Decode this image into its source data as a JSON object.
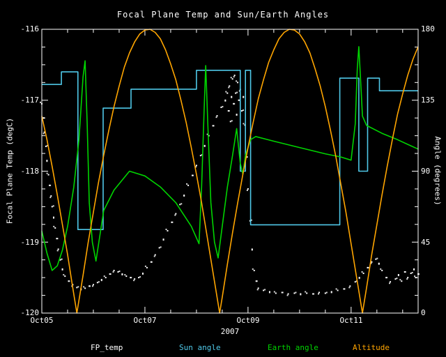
{
  "window": {
    "background": "#000000",
    "foreground": "#ffffff"
  },
  "chart_data": {
    "type": "line",
    "title": "Focal Plane Temp and Sun/Earth Angles",
    "xlabel": "2007",
    "ylabel_left": "Focal Plane Temp (degC)",
    "ylabel_right": "Angle (degrees)",
    "x_range_days": [
      0,
      7.3
    ],
    "x_tick_days": [
      0,
      2,
      4,
      6
    ],
    "x_tick_labels": [
      "Oct05",
      "Oct07",
      "Oct09",
      "Oct11"
    ],
    "y_left_range": [
      -120,
      -116
    ],
    "y_left_ticks": [
      "-116",
      "-117",
      "-118",
      "-119",
      "-120"
    ],
    "y_right_range": [
      0,
      180
    ],
    "y_right_ticks": [
      "180",
      "135",
      "90",
      "45",
      "0"
    ],
    "grid": false,
    "legend_position": "bottom",
    "legend": [
      {
        "label": "FP_temp",
        "color": "#ffffff"
      },
      {
        "label": "Sun angle",
        "color": "#4fc8e8"
      },
      {
        "label": "Earth angle",
        "color": "#00d400"
      },
      {
        "label": "Altitude",
        "color": "#ffa500"
      }
    ],
    "series": [
      {
        "name": "FP_temp",
        "type": "scatter",
        "axis": "left",
        "color": "#ffffff",
        "points": [
          [
            0.0,
            -117.05
          ],
          [
            0.03,
            -117.25
          ],
          [
            0.05,
            -117.45
          ],
          [
            0.08,
            -117.65
          ],
          [
            0.1,
            -117.85
          ],
          [
            0.13,
            -118.05
          ],
          [
            0.15,
            -118.2
          ],
          [
            0.18,
            -118.35
          ],
          [
            0.2,
            -118.5
          ],
          [
            0.23,
            -118.65
          ],
          [
            0.26,
            -118.8
          ],
          [
            0.29,
            -118.95
          ],
          [
            0.32,
            -119.1
          ],
          [
            0.36,
            -119.25
          ],
          [
            0.4,
            -119.38
          ],
          [
            0.45,
            -119.48
          ],
          [
            0.52,
            -119.55
          ],
          [
            0.6,
            -119.6
          ],
          [
            0.68,
            -119.64
          ],
          [
            0.76,
            -119.66
          ],
          [
            0.84,
            -119.65
          ],
          [
            0.92,
            -119.62
          ],
          [
            1.0,
            -119.6
          ],
          [
            1.08,
            -119.57
          ],
          [
            1.16,
            -119.53
          ],
          [
            1.24,
            -119.5
          ],
          [
            1.32,
            -119.45
          ],
          [
            1.4,
            -119.4
          ],
          [
            1.48,
            -119.42
          ],
          [
            1.56,
            -119.45
          ],
          [
            1.64,
            -119.48
          ],
          [
            1.72,
            -119.5
          ],
          [
            1.8,
            -119.52
          ],
          [
            1.88,
            -119.5
          ],
          [
            1.96,
            -119.44
          ],
          [
            2.04,
            -119.36
          ],
          [
            2.12,
            -119.28
          ],
          [
            2.2,
            -119.18
          ],
          [
            2.28,
            -119.08
          ],
          [
            2.36,
            -118.96
          ],
          [
            2.44,
            -118.84
          ],
          [
            2.52,
            -118.72
          ],
          [
            2.6,
            -118.6
          ],
          [
            2.68,
            -118.47
          ],
          [
            2.76,
            -118.34
          ],
          [
            2.84,
            -118.2
          ],
          [
            2.92,
            -118.06
          ],
          [
            3.0,
            -117.92
          ],
          [
            3.08,
            -117.78
          ],
          [
            3.16,
            -117.64
          ],
          [
            3.24,
            -117.5
          ],
          [
            3.32,
            -117.36
          ],
          [
            3.4,
            -117.22
          ],
          [
            3.48,
            -117.1
          ],
          [
            3.56,
            -117.0
          ],
          [
            3.6,
            -116.9
          ],
          [
            3.62,
            -117.15
          ],
          [
            3.64,
            -116.8
          ],
          [
            3.66,
            -117.3
          ],
          [
            3.68,
            -116.95
          ],
          [
            3.7,
            -116.7
          ],
          [
            3.72,
            -117.05
          ],
          [
            3.74,
            -116.65
          ],
          [
            3.76,
            -116.9
          ],
          [
            3.78,
            -117.2
          ],
          [
            3.8,
            -116.75
          ],
          [
            3.82,
            -117.0
          ],
          [
            3.85,
            -116.85
          ],
          [
            3.88,
            -117.15
          ],
          [
            3.91,
            -116.95
          ],
          [
            3.94,
            -117.35
          ],
          [
            3.97,
            -117.8
          ],
          [
            4.0,
            -118.25
          ],
          [
            4.04,
            -118.7
          ],
          [
            4.08,
            -119.1
          ],
          [
            4.12,
            -119.4
          ],
          [
            4.16,
            -119.55
          ],
          [
            4.2,
            -119.65
          ],
          [
            4.3,
            -119.68
          ],
          [
            4.42,
            -119.7
          ],
          [
            4.54,
            -119.72
          ],
          [
            4.66,
            -119.71
          ],
          [
            4.78,
            -119.73
          ],
          [
            4.9,
            -119.72
          ],
          [
            5.02,
            -119.73
          ],
          [
            5.14,
            -119.72
          ],
          [
            5.26,
            -119.73
          ],
          [
            5.38,
            -119.71
          ],
          [
            5.5,
            -119.72
          ],
          [
            5.62,
            -119.7
          ],
          [
            5.74,
            -119.68
          ],
          [
            5.86,
            -119.66
          ],
          [
            5.98,
            -119.62
          ],
          [
            6.08,
            -119.56
          ],
          [
            6.16,
            -119.5
          ],
          [
            6.24,
            -119.44
          ],
          [
            6.32,
            -119.36
          ],
          [
            6.4,
            -119.28
          ],
          [
            6.48,
            -119.24
          ],
          [
            6.54,
            -119.3
          ],
          [
            6.6,
            -119.4
          ],
          [
            6.68,
            -119.5
          ],
          [
            6.76,
            -119.56
          ],
          [
            6.86,
            -119.52
          ],
          [
            6.92,
            -119.46
          ],
          [
            6.98,
            -119.55
          ],
          [
            7.04,
            -119.42
          ],
          [
            7.1,
            -119.5
          ],
          [
            7.16,
            -119.44
          ],
          [
            7.22,
            -119.38
          ],
          [
            7.26,
            -119.5
          ],
          [
            7.3,
            -119.45
          ]
        ]
      },
      {
        "name": "Sun angle",
        "type": "step",
        "axis": "right",
        "color": "#4fc8e8",
        "points": [
          [
            0.0,
            145
          ],
          [
            0.38,
            153
          ],
          [
            0.7,
            53
          ],
          [
            1.19,
            130
          ],
          [
            1.73,
            142
          ],
          [
            3.0,
            154
          ],
          [
            3.85,
            90
          ],
          [
            3.95,
            154
          ],
          [
            4.05,
            56
          ],
          [
            5.78,
            149
          ],
          [
            6.15,
            90
          ],
          [
            6.32,
            149
          ],
          [
            6.55,
            141
          ],
          [
            7.3,
            141
          ]
        ]
      },
      {
        "name": "Earth angle",
        "type": "line",
        "axis": "right",
        "color": "#00d400",
        "points": [
          [
            0.0,
            52
          ],
          [
            0.1,
            38
          ],
          [
            0.2,
            27
          ],
          [
            0.3,
            30
          ],
          [
            0.4,
            40
          ],
          [
            0.5,
            55
          ],
          [
            0.62,
            80
          ],
          [
            0.72,
            110
          ],
          [
            0.8,
            150
          ],
          [
            0.84,
            160
          ],
          [
            0.88,
            120
          ],
          [
            0.92,
            70
          ],
          [
            0.98,
            45
          ],
          [
            1.05,
            33
          ],
          [
            1.2,
            65
          ],
          [
            1.4,
            78
          ],
          [
            1.7,
            90
          ],
          [
            2.0,
            87
          ],
          [
            2.3,
            80
          ],
          [
            2.6,
            70
          ],
          [
            2.9,
            55
          ],
          [
            3.05,
            44
          ],
          [
            3.1,
            80
          ],
          [
            3.15,
            130
          ],
          [
            3.18,
            157
          ],
          [
            3.22,
            120
          ],
          [
            3.28,
            70
          ],
          [
            3.35,
            45
          ],
          [
            3.42,
            35
          ],
          [
            3.5,
            55
          ],
          [
            3.6,
            80
          ],
          [
            3.7,
            100
          ],
          [
            3.78,
            117
          ],
          [
            3.85,
            95
          ],
          [
            3.9,
            88
          ],
          [
            3.95,
            100
          ],
          [
            4.05,
            110
          ],
          [
            4.15,
            112
          ],
          [
            4.5,
            109
          ],
          [
            5.0,
            105
          ],
          [
            5.5,
            101
          ],
          [
            5.8,
            99
          ],
          [
            6.0,
            97
          ],
          [
            6.08,
            120
          ],
          [
            6.12,
            155
          ],
          [
            6.15,
            169
          ],
          [
            6.18,
            150
          ],
          [
            6.22,
            125
          ],
          [
            6.3,
            119
          ],
          [
            6.6,
            114
          ],
          [
            6.9,
            110
          ],
          [
            7.1,
            107
          ],
          [
            7.3,
            104
          ]
        ]
      },
      {
        "name": "Altitude",
        "type": "line",
        "axis": "right",
        "color": "#ffa500",
        "points": [
          [
            0.0,
            125
          ],
          [
            0.1,
            110
          ],
          [
            0.2,
            93
          ],
          [
            0.3,
            75
          ],
          [
            0.4,
            56
          ],
          [
            0.5,
            37
          ],
          [
            0.6,
            16
          ],
          [
            0.68,
            0
          ],
          [
            0.8,
            24
          ],
          [
            0.9,
            45
          ],
          [
            1.0,
            64
          ],
          [
            1.1,
            83
          ],
          [
            1.2,
            100
          ],
          [
            1.3,
            116
          ],
          [
            1.4,
            131
          ],
          [
            1.5,
            144
          ],
          [
            1.6,
            156
          ],
          [
            1.7,
            165
          ],
          [
            1.8,
            172
          ],
          [
            1.9,
            177
          ],
          [
            2.0,
            179.5
          ],
          [
            2.1,
            180
          ],
          [
            2.2,
            178
          ],
          [
            2.3,
            174
          ],
          [
            2.4,
            167
          ],
          [
            2.5,
            158
          ],
          [
            2.6,
            148
          ],
          [
            2.7,
            135
          ],
          [
            2.8,
            121
          ],
          [
            2.9,
            105
          ],
          [
            3.0,
            88
          ],
          [
            3.1,
            70
          ],
          [
            3.2,
            50
          ],
          [
            3.3,
            30
          ],
          [
            3.4,
            10
          ],
          [
            3.45,
            0
          ],
          [
            3.5,
            10
          ],
          [
            3.6,
            31
          ],
          [
            3.7,
            51
          ],
          [
            3.8,
            70
          ],
          [
            3.9,
            88
          ],
          [
            4.0,
            105
          ],
          [
            4.1,
            121
          ],
          [
            4.2,
            136
          ],
          [
            4.3,
            148
          ],
          [
            4.4,
            159
          ],
          [
            4.5,
            167
          ],
          [
            4.6,
            174
          ],
          [
            4.7,
            178
          ],
          [
            4.8,
            180
          ],
          [
            4.9,
            179.5
          ],
          [
            5.0,
            177
          ],
          [
            5.1,
            172
          ],
          [
            5.2,
            165
          ],
          [
            5.3,
            155
          ],
          [
            5.4,
            144
          ],
          [
            5.5,
            131
          ],
          [
            5.6,
            116
          ],
          [
            5.7,
            100
          ],
          [
            5.8,
            82
          ],
          [
            5.9,
            64
          ],
          [
            6.0,
            44
          ],
          [
            6.1,
            24
          ],
          [
            6.22,
            0
          ],
          [
            6.3,
            16
          ],
          [
            6.4,
            37
          ],
          [
            6.5,
            56
          ],
          [
            6.6,
            75
          ],
          [
            6.7,
            93
          ],
          [
            6.8,
            110
          ],
          [
            6.9,
            126
          ],
          [
            7.0,
            139
          ],
          [
            7.1,
            151
          ],
          [
            7.2,
            161
          ],
          [
            7.3,
            169
          ]
        ]
      }
    ]
  }
}
